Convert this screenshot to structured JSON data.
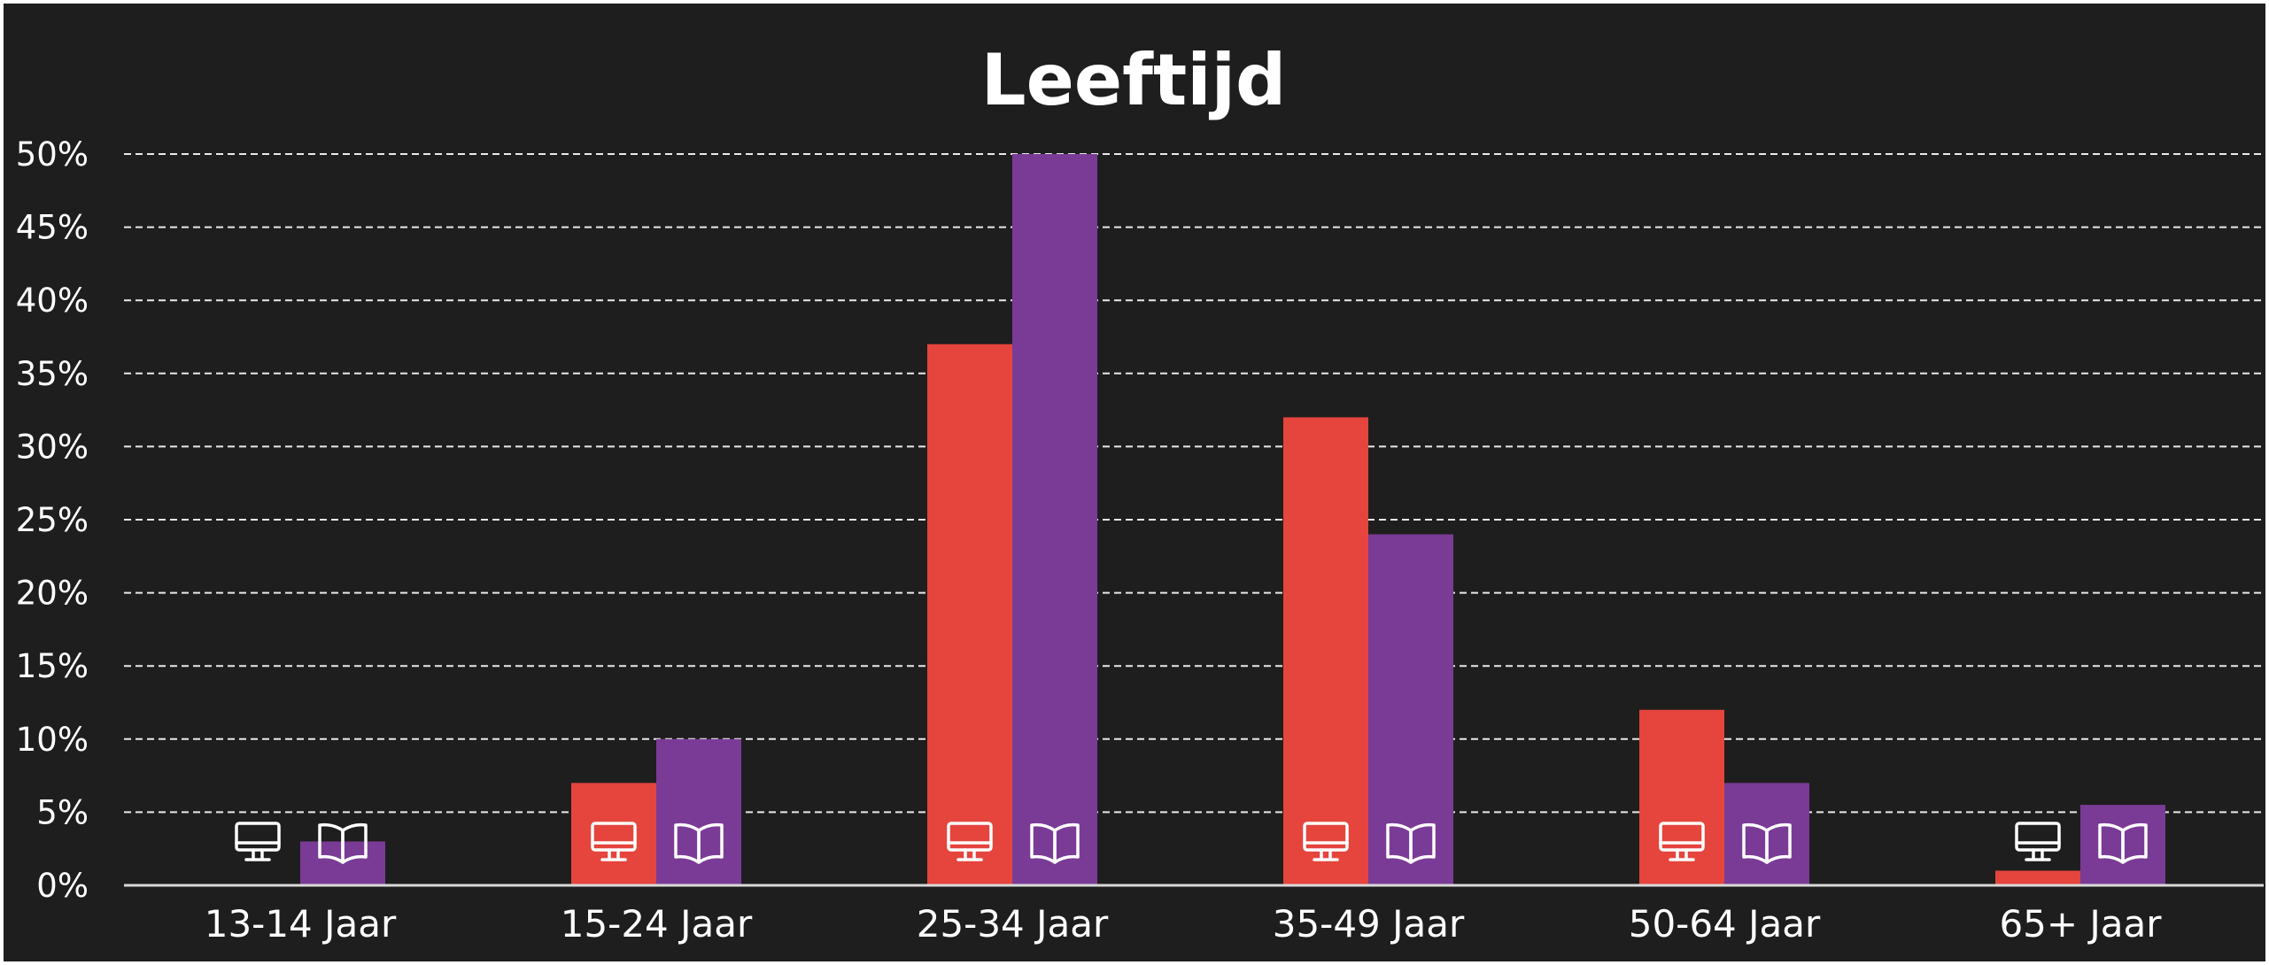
{
  "colors": {
    "background": "#1e1e1e",
    "text": "#ffffff",
    "grid": "#ffffff",
    "axis": "#d9d9d9"
  },
  "chart_data": {
    "type": "bar",
    "title": "Leeftijd",
    "xlabel": "",
    "ylabel": "",
    "ylim": [
      0,
      50
    ],
    "y_ticks": [
      "0%",
      "5%",
      "10%",
      "15%",
      "20%",
      "25%",
      "30%",
      "35%",
      "40%",
      "45%",
      "50%"
    ],
    "y_tick_values": [
      0,
      5,
      10,
      15,
      20,
      25,
      30,
      35,
      40,
      45,
      50
    ],
    "grid": "horizontal dashed",
    "legend": "icon markers at the base of each bar",
    "categories": [
      "13-14 Jaar",
      "15-24 Jaar",
      "25-34 Jaar",
      "35-49 Jaar",
      "50-64 Jaar",
      "65+ Jaar"
    ],
    "series": [
      {
        "values": [
          0,
          7,
          37,
          32,
          12,
          1
        ],
        "color": "#e5453d",
        "icon": "monitor-icon"
      },
      {
        "values": [
          3,
          10,
          50,
          24,
          7,
          5.5
        ],
        "color": "#7a3b96",
        "icon": "book-icon"
      }
    ]
  }
}
